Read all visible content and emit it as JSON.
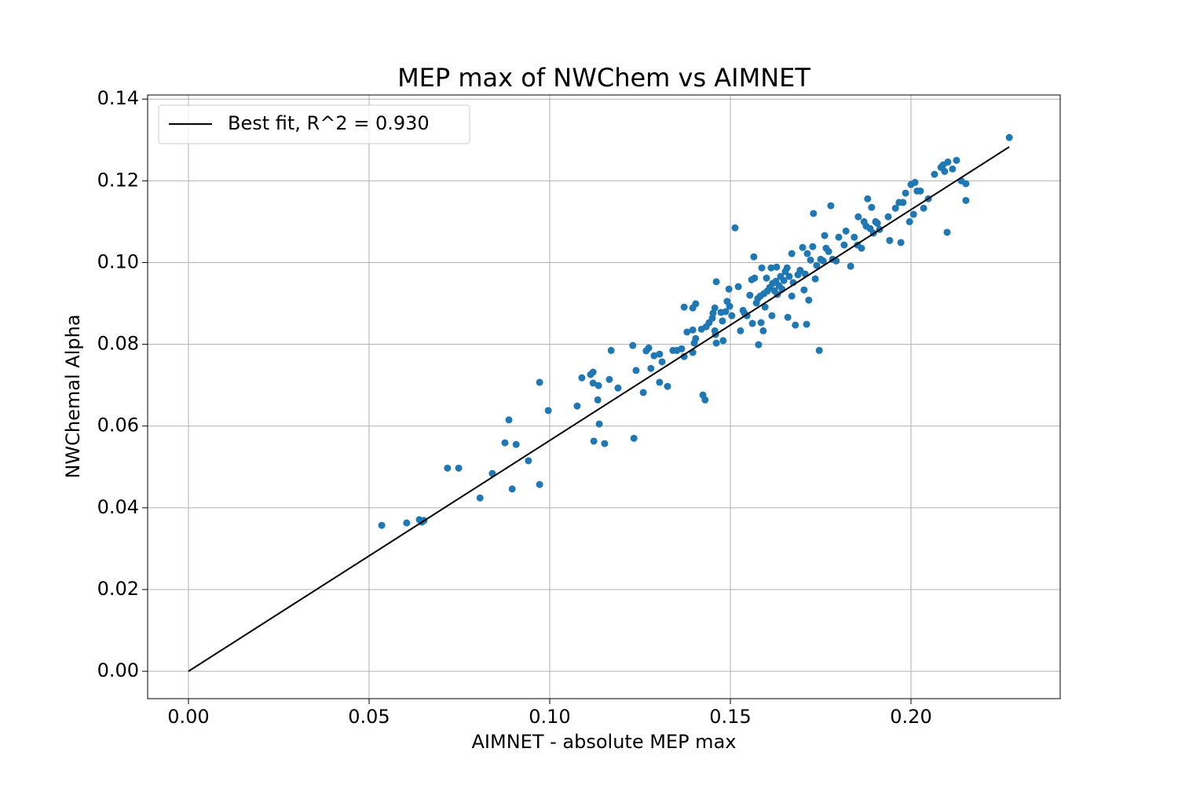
{
  "chart_data": {
    "type": "scatter",
    "title": "MEP max of NWChem vs AIMNET",
    "xlabel": "AIMNET - absolute MEP max",
    "ylabel": "NWChemal Alpha",
    "xlim": [
      -0.0113,
      0.2413
    ],
    "ylim": [
      -0.0067,
      0.141
    ],
    "xticks": [
      {
        "value": 0,
        "label": "0.00"
      },
      {
        "value": 0.05,
        "label": "0.05"
      },
      {
        "value": 0.1,
        "label": "0.10"
      },
      {
        "value": 0.15,
        "label": "0.15"
      },
      {
        "value": 0.2,
        "label": "0.20"
      }
    ],
    "yticks": [
      {
        "value": 0,
        "label": "0.00"
      },
      {
        "value": 0.02,
        "label": "0.02"
      },
      {
        "value": 0.04,
        "label": "0.04"
      },
      {
        "value": 0.06,
        "label": "0.06"
      },
      {
        "value": 0.08,
        "label": "0.08"
      },
      {
        "value": 0.1,
        "label": "0.10"
      },
      {
        "value": 0.12,
        "label": "0.12"
      },
      {
        "value": 0.14,
        "label": "0.14"
      }
    ],
    "grid": true,
    "legend": "upper left",
    "series": [
      {
        "type": "scatter",
        "color": "#1f77b4",
        "x": [
          0.0535,
          0.0604,
          0.0639,
          0.0646,
          0.0652,
          0.0717,
          0.0748,
          0.0807,
          0.0841,
          0.0876,
          0.0887,
          0.0896,
          0.0907,
          0.0941,
          0.0972,
          0.0972,
          0.0996,
          0.1076,
          0.1089,
          0.1113,
          0.112,
          0.112,
          0.1122,
          0.1133,
          0.1135,
          0.1137,
          0.1152,
          0.1165,
          0.117,
          0.1189,
          0.123,
          0.1233,
          0.1239,
          0.1259,
          0.1267,
          0.1274,
          0.128,
          0.1289,
          0.1304,
          0.1304,
          0.1311,
          0.1326,
          0.1341,
          0.1352,
          0.1365,
          0.1372,
          0.1372,
          0.138,
          0.1396,
          0.1396,
          0.1404,
          0.1396,
          0.14,
          0.1404,
          0.1424,
          0.143,
          0.142,
          0.1433,
          0.1441,
          0.145,
          0.1452,
          0.1457,
          0.1459,
          0.1457,
          0.1461,
          0.1461,
          0.1474,
          0.1478,
          0.148,
          0.1487,
          0.1491,
          0.1496,
          0.1498,
          0.1504,
          0.1513,
          0.1522,
          0.1528,
          0.1535,
          0.1539,
          0.1546,
          0.1554,
          0.1559,
          0.1561,
          0.1565,
          0.1567,
          0.1572,
          0.1576,
          0.1578,
          0.1583,
          0.1585,
          0.1587,
          0.1591,
          0.1593,
          0.1596,
          0.16,
          0.1602,
          0.1609,
          0.1613,
          0.1615,
          0.1617,
          0.1622,
          0.1626,
          0.1628,
          0.163,
          0.1635,
          0.1639,
          0.1643,
          0.1648,
          0.1652,
          0.1657,
          0.1659,
          0.1663,
          0.167,
          0.167,
          0.1674,
          0.168,
          0.1687,
          0.1693,
          0.17,
          0.1704,
          0.1707,
          0.1711,
          0.1713,
          0.1717,
          0.1722,
          0.1728,
          0.173,
          0.1735,
          0.1739,
          0.1746,
          0.175,
          0.1757,
          0.1761,
          0.1765,
          0.1772,
          0.1778,
          0.1783,
          0.1793,
          0.18,
          0.1815,
          0.182,
          0.1833,
          0.1843,
          0.1852,
          0.1854,
          0.1863,
          0.187,
          0.1876,
          0.188,
          0.1887,
          0.1891,
          0.1896,
          0.1902,
          0.1907,
          0.1913,
          0.1937,
          0.1941,
          0.1957,
          0.1967,
          0.1972,
          0.1978,
          0.1985,
          0.1996,
          0.2,
          0.2007,
          0.2011,
          0.2017,
          0.2026,
          0.2035,
          0.2048,
          0.2065,
          0.2083,
          0.2089,
          0.2093,
          0.21,
          0.2102,
          0.2115,
          0.2126,
          0.2139,
          0.2152,
          0.2152,
          0.2272
        ],
        "values": [
          0.0357,
          0.0363,
          0.0371,
          0.0365,
          0.0369,
          0.0497,
          0.0497,
          0.0424,
          0.0484,
          0.0559,
          0.0615,
          0.0446,
          0.0555,
          0.0515,
          0.0707,
          0.0457,
          0.0638,
          0.0649,
          0.0718,
          0.0726,
          0.0732,
          0.0705,
          0.0563,
          0.0664,
          0.0699,
          0.0605,
          0.0557,
          0.0714,
          0.0785,
          0.0693,
          0.0797,
          0.057,
          0.0736,
          0.0682,
          0.0784,
          0.0791,
          0.0741,
          0.0772,
          0.0776,
          0.0707,
          0.0757,
          0.0697,
          0.0785,
          0.0785,
          0.0789,
          0.077,
          0.0891,
          0.083,
          0.0835,
          0.0889,
          0.0899,
          0.078,
          0.0803,
          0.0814,
          0.0676,
          0.0664,
          0.0837,
          0.0843,
          0.0853,
          0.0864,
          0.0876,
          0.0833,
          0.0824,
          0.0889,
          0.0953,
          0.0803,
          0.0878,
          0.0857,
          0.0809,
          0.088,
          0.0905,
          0.0935,
          0.0893,
          0.087,
          0.1085,
          0.0941,
          0.0833,
          0.0883,
          0.0876,
          0.087,
          0.092,
          0.0958,
          0.0851,
          0.1014,
          0.0962,
          0.0901,
          0.0912,
          0.0799,
          0.0918,
          0.0853,
          0.0987,
          0.0833,
          0.0924,
          0.0891,
          0.0962,
          0.093,
          0.0939,
          0.0987,
          0.087,
          0.0949,
          0.0931,
          0.0954,
          0.0989,
          0.0922,
          0.0943,
          0.0966,
          0.0935,
          0.0956,
          0.0978,
          0.0987,
          0.0866,
          0.0966,
          0.0918,
          0.1022,
          0.0951,
          0.0847,
          0.097,
          0.0981,
          0.1037,
          0.0933,
          0.0972,
          0.0849,
          0.1022,
          0.0908,
          0.1006,
          0.1039,
          0.112,
          0.096,
          0.0993,
          0.0785,
          0.1008,
          0.1004,
          0.1066,
          0.1035,
          0.1027,
          0.1139,
          0.1008,
          0.1004,
          0.1062,
          0.1043,
          0.1077,
          0.0991,
          0.1062,
          0.1043,
          0.1112,
          0.1035,
          0.11,
          0.1089,
          0.1156,
          0.1083,
          0.1135,
          0.1072,
          0.11,
          0.1096,
          0.1081,
          0.1112,
          0.1054,
          0.1133,
          0.1147,
          0.1049,
          0.1147,
          0.117,
          0.11,
          0.1191,
          0.1118,
          0.1196,
          0.1175,
          0.1175,
          0.1133,
          0.1156,
          0.1216,
          0.1233,
          0.1239,
          0.1223,
          0.1074,
          0.1246,
          0.1229,
          0.125,
          0.12,
          0.1193,
          0.1152,
          0.1306
        ]
      },
      {
        "type": "line",
        "name": "Best fit, R^2 = 0.930",
        "color": "#000000",
        "x": [
          0,
          0.2272
        ],
        "values": [
          0,
          0.1283
        ]
      }
    ]
  }
}
